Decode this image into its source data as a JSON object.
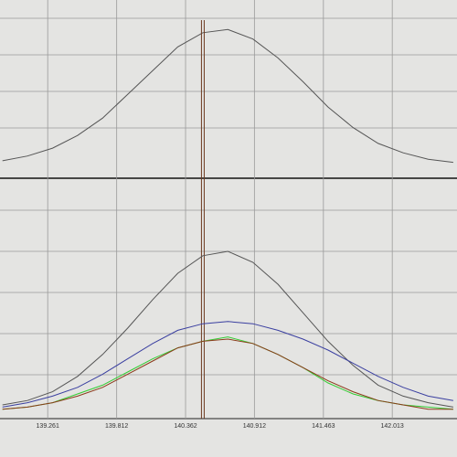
{
  "chart_data": [
    {
      "type": "line",
      "x": [
        138.9,
        139.1,
        139.3,
        139.5,
        139.7,
        139.9,
        140.1,
        140.3,
        140.5,
        140.7,
        140.9,
        141.1,
        141.3,
        141.5,
        141.7,
        141.9,
        142.1,
        142.3,
        142.5
      ],
      "series": [
        {
          "color": "#555555",
          "values": [
            7,
            10,
            15,
            23,
            34,
            49,
            64,
            79,
            88,
            90,
            84,
            72,
            57,
            41,
            28,
            18,
            12,
            8,
            6
          ]
        }
      ],
      "xlim": [
        138.88,
        142.53
      ],
      "ylim": [
        0,
        100
      ],
      "cursor": 140.5
    },
    {
      "type": "line",
      "x": [
        138.9,
        139.1,
        139.3,
        139.5,
        139.7,
        139.9,
        140.1,
        140.3,
        140.5,
        140.7,
        140.9,
        141.1,
        141.3,
        141.5,
        141.7,
        141.9,
        142.1,
        142.3,
        142.5
      ],
      "series": [
        {
          "color": "#555555",
          "values": [
            5,
            7,
            11,
            18,
            28,
            40,
            53,
            65,
            73,
            75,
            70,
            60,
            47,
            34,
            23,
            14,
            9,
            6,
            4
          ]
        },
        {
          "color": "#3a3fa0",
          "values": [
            4,
            6,
            9,
            13,
            19,
            26,
            33,
            39,
            42,
            43,
            42,
            39,
            35,
            30,
            24,
            18,
            13,
            9,
            7
          ]
        },
        {
          "color": "#33cc33",
          "values": [
            3,
            4,
            6,
            10,
            14,
            20,
            26,
            31,
            34,
            36,
            33,
            28,
            22,
            15,
            10,
            7,
            5,
            4,
            3
          ]
        },
        {
          "color": "#8b3a1a",
          "values": [
            3,
            4,
            6,
            9,
            13,
            19,
            25,
            31,
            34,
            35,
            33,
            28,
            22,
            16,
            11,
            7,
            5,
            3,
            3
          ]
        }
      ],
      "xlim": [
        138.88,
        142.53
      ],
      "ylim": [
        0,
        100
      ],
      "xticks": [
        139.261,
        139.812,
        140.362,
        140.912,
        141.463,
        142.013
      ]
    }
  ]
}
